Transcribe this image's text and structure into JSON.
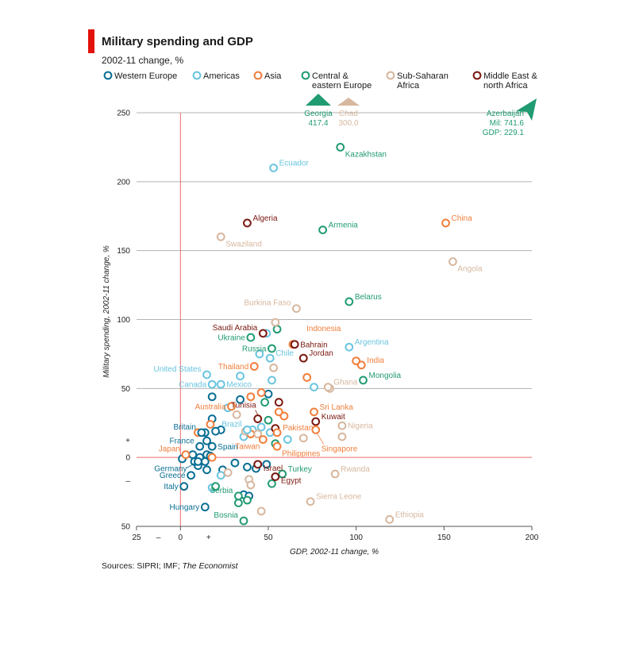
{
  "header": {
    "title": "Military spending and GDP",
    "subtitle": "2002-11 change, %"
  },
  "source": {
    "prefix": "Sources: SIPRI; IMF; ",
    "italic": "The Economist"
  },
  "colors": {
    "western_europe": "#0a6f93",
    "americas": "#6ac5e0",
    "asia": "#f07e3b",
    "central_eastern_europe": "#219b72",
    "sub_saharan_africa": "#d7b79e",
    "middle_east_north_africa": "#7b1810",
    "zero_line": "#ef6b6b",
    "grid": "#b3b3b3"
  },
  "chart_data": {
    "type": "scatter",
    "title": "Military spending and GDP",
    "subtitle": "2002-11 change, %",
    "xlabel": "GDP, 2002-11 change, %",
    "ylabel": "Military spending, 2002-11 change, %",
    "xlim": [
      -25,
      200
    ],
    "ylim": [
      -50,
      250
    ],
    "x_ticks": [
      {
        "value": -25,
        "label": "25"
      },
      {
        "value": 0,
        "label": "0"
      },
      {
        "value": 50,
        "label": "50"
      },
      {
        "value": 100,
        "label": "100"
      },
      {
        "value": 150,
        "label": "150"
      },
      {
        "value": 200,
        "label": "200"
      }
    ],
    "y_ticks": [
      {
        "value": 250,
        "label": "250"
      },
      {
        "value": 200,
        "label": "200"
      },
      {
        "value": 150,
        "label": "150"
      },
      {
        "value": 100,
        "label": "100"
      },
      {
        "value": 50,
        "label": "50"
      },
      {
        "value": 0,
        "label": "0"
      },
      {
        "value": -50,
        "label": "50"
      }
    ],
    "x_signs": [
      {
        "value": -12.5,
        "label": "–"
      },
      {
        "value": 16,
        "label": "+"
      }
    ],
    "y_signs": [
      {
        "value": 12.5,
        "label": "+"
      },
      {
        "value": -17,
        "label": "–"
      }
    ],
    "grid": "horizontal",
    "legend_position": "top",
    "legend": [
      {
        "key": "western_europe",
        "label": "Western Europe"
      },
      {
        "key": "americas",
        "label": "Americas"
      },
      {
        "key": "asia",
        "label": "Asia"
      },
      {
        "key": "central_eastern_europe",
        "label": "Central &\neastern Europe"
      },
      {
        "key": "sub_saharan_africa",
        "label": "Sub-Saharan\nAfrica"
      },
      {
        "key": "middle_east_north_africa",
        "label": "Middle East &\nnorth Africa"
      }
    ],
    "off_chart": [
      {
        "name": "Georgia",
        "region": "central_eastern_europe",
        "value": "417.4",
        "direction": "up"
      },
      {
        "name": "Chad",
        "region": "sub_saharan_africa",
        "value": "300.0",
        "direction": "up"
      },
      {
        "name": "Azerbaijan",
        "region": "central_eastern_europe",
        "lines": [
          "Azerbaijan",
          "Mil: 741.6",
          "GDP: 229.1"
        ],
        "direction": "up-right"
      }
    ],
    "labelled_points": [
      {
        "name": "Kazakhstan",
        "region": "central_eastern_europe",
        "x": 91,
        "y": 225,
        "pos": "below-right"
      },
      {
        "name": "Ecuador",
        "region": "americas",
        "x": 53,
        "y": 210,
        "pos": "right-up"
      },
      {
        "name": "Algeria",
        "region": "middle_east_north_africa",
        "x": 38,
        "y": 170,
        "pos": "right-up"
      },
      {
        "name": "Armenia",
        "region": "central_eastern_europe",
        "x": 81,
        "y": 165,
        "pos": "right-up"
      },
      {
        "name": "China",
        "region": "asia",
        "x": 151,
        "y": 170,
        "pos": "right-up"
      },
      {
        "name": "Swaziland",
        "region": "sub_saharan_africa",
        "x": 23,
        "y": 160,
        "pos": "below-right"
      },
      {
        "name": "Angola",
        "region": "sub_saharan_africa",
        "x": 155,
        "y": 142,
        "pos": "below-right"
      },
      {
        "name": "Belarus",
        "region": "central_eastern_europe",
        "x": 96,
        "y": 113,
        "pos": "right-up"
      },
      {
        "name": "Burkina Faso",
        "region": "sub_saharan_africa",
        "x": 66,
        "y": 108,
        "pos": "left-up"
      },
      {
        "name": "Saudi Arabia",
        "region": "middle_east_north_africa",
        "x": 47,
        "y": 90,
        "pos": "left-up"
      },
      {
        "name": "Indonesia",
        "region": "asia",
        "x": 64,
        "y": 82,
        "pos": "right-up-far"
      },
      {
        "name": "Ukraine",
        "region": "central_eastern_europe",
        "x": 40,
        "y": 87,
        "pos": "left"
      },
      {
        "name": "Bahrain",
        "region": "middle_east_north_africa",
        "x": 65,
        "y": 82,
        "pos": "right"
      },
      {
        "name": "Argentina",
        "region": "americas",
        "x": 96,
        "y": 80,
        "pos": "right-up"
      },
      {
        "name": "Russia",
        "region": "central_eastern_europe",
        "x": 52,
        "y": 79,
        "pos": "left"
      },
      {
        "name": "Jordan",
        "region": "middle_east_north_africa",
        "x": 70,
        "y": 72,
        "pos": "right-up"
      },
      {
        "name": "Chile",
        "region": "americas",
        "x": 51,
        "y": 72,
        "pos": "right-up"
      },
      {
        "name": "India",
        "region": "asia",
        "x": 103,
        "y": 67,
        "pos": "right-up"
      },
      {
        "name": "Thailand",
        "region": "asia",
        "x": 42,
        "y": 66,
        "pos": "left"
      },
      {
        "name": "United States",
        "region": "americas",
        "x": 15,
        "y": 60,
        "pos": "left-up"
      },
      {
        "name": "Mongolia",
        "region": "central_eastern_europe",
        "x": 104,
        "y": 56,
        "pos": "right-up"
      },
      {
        "name": "Ghana",
        "region": "sub_saharan_africa",
        "x": 84,
        "y": 51,
        "pos": "right-up"
      },
      {
        "name": "Canada",
        "region": "americas",
        "x": 18,
        "y": 53,
        "pos": "left"
      },
      {
        "name": "Mexico",
        "region": "americas",
        "x": 23,
        "y": 53,
        "pos": "right"
      },
      {
        "name": "Australia",
        "region": "asia",
        "x": 29,
        "y": 37,
        "pos": "left"
      },
      {
        "name": "Sri Lanka",
        "region": "asia",
        "x": 76,
        "y": 33,
        "pos": "right-up"
      },
      {
        "name": "Tunisia",
        "region": "middle_east_north_africa",
        "x": 44,
        "y": 28,
        "pos": "leader-up"
      },
      {
        "name": "Kuwait",
        "region": "middle_east_north_africa",
        "x": 77,
        "y": 26,
        "pos": "right-up"
      },
      {
        "name": "Nigeria",
        "region": "sub_saharan_africa",
        "x": 92,
        "y": 23,
        "pos": "right"
      },
      {
        "name": "Britain",
        "region": "western_europe",
        "x": 12,
        "y": 18,
        "pos": "left-up"
      },
      {
        "name": "Brazil",
        "region": "americas",
        "x": 38,
        "y": 20,
        "pos": "left-up"
      },
      {
        "name": "Pakistan",
        "region": "asia",
        "x": 55,
        "y": 18,
        "pos": "right-up"
      },
      {
        "name": "France",
        "region": "western_europe",
        "x": 11,
        "y": 8,
        "pos": "left-up"
      },
      {
        "name": "Spain",
        "region": "western_europe",
        "x": 18,
        "y": 8,
        "pos": "right"
      },
      {
        "name": "Taiwan",
        "region": "asia",
        "x": 47,
        "y": 13,
        "pos": "left-down"
      },
      {
        "name": "Singapore",
        "region": "asia",
        "x": 77,
        "y": 20,
        "pos": "leader-down"
      },
      {
        "name": "Philippines",
        "region": "asia",
        "x": 55,
        "y": 8,
        "pos": "below-right"
      },
      {
        "name": "Japan",
        "region": "asia",
        "x": 3,
        "y": 2,
        "pos": "left-up"
      },
      {
        "name": "Germany",
        "region": "western_europe",
        "x": 10,
        "y": -3,
        "pos": "leader-left"
      },
      {
        "name": "Israel",
        "region": "middle_east_north_africa",
        "x": 44,
        "y": -5,
        "pos": "right-down"
      },
      {
        "name": "Turkey",
        "region": "central_eastern_europe",
        "x": 58,
        "y": -12,
        "pos": "right-up"
      },
      {
        "name": "Rwanda",
        "region": "sub_saharan_africa",
        "x": 88,
        "y": -12,
        "pos": "right-up"
      },
      {
        "name": "Greece",
        "region": "western_europe",
        "x": 6,
        "y": -13,
        "pos": "left"
      },
      {
        "name": "Egypt",
        "region": "middle_east_north_africa",
        "x": 54,
        "y": -14,
        "pos": "right-down"
      },
      {
        "name": "Italy",
        "region": "western_europe",
        "x": 2,
        "y": -21,
        "pos": "left"
      },
      {
        "name": "Sierra Leone",
        "region": "sub_saharan_africa",
        "x": 74,
        "y": -32,
        "pos": "right-up"
      },
      {
        "name": "Serbia",
        "region": "central_eastern_europe",
        "x": 33,
        "y": -28,
        "pos": "left-up"
      },
      {
        "name": "Hungary",
        "region": "western_europe",
        "x": 14,
        "y": -36,
        "pos": "left"
      },
      {
        "name": "Bosnia",
        "region": "central_eastern_europe",
        "x": 36,
        "y": -46,
        "pos": "left-up"
      },
      {
        "name": "Ethiopia",
        "region": "sub_saharan_africa",
        "x": 119,
        "y": -45,
        "pos": "right-up"
      }
    ],
    "unlabelled_points": [
      {
        "region": "western_europe",
        "x": 18,
        "y": 44
      },
      {
        "region": "western_europe",
        "x": 18,
        "y": 28
      },
      {
        "region": "western_europe",
        "x": 14,
        "y": 18
      },
      {
        "region": "western_europe",
        "x": 23,
        "y": 20
      },
      {
        "region": "western_europe",
        "x": 20,
        "y": 19
      },
      {
        "region": "western_europe",
        "x": 15,
        "y": 12
      },
      {
        "region": "western_europe",
        "x": 7,
        "y": 2
      },
      {
        "region": "western_europe",
        "x": 11,
        "y": 0
      },
      {
        "region": "western_europe",
        "x": 15,
        "y": 2
      },
      {
        "region": "western_europe",
        "x": 17,
        "y": 1
      },
      {
        "region": "western_europe",
        "x": 14,
        "y": -3
      },
      {
        "region": "western_europe",
        "x": 15,
        "y": -9
      },
      {
        "region": "western_europe",
        "x": 10,
        "y": -6
      },
      {
        "region": "western_europe",
        "x": 8,
        "y": -3
      },
      {
        "region": "western_europe",
        "x": 24,
        "y": -9
      },
      {
        "region": "western_europe",
        "x": 31,
        "y": -4
      },
      {
        "region": "western_europe",
        "x": 36,
        "y": -27
      },
      {
        "region": "western_europe",
        "x": 39,
        "y": -28
      },
      {
        "region": "western_europe",
        "x": 38,
        "y": -7
      },
      {
        "region": "western_europe",
        "x": 43,
        "y": -8
      },
      {
        "region": "western_europe",
        "x": 49,
        "y": -5
      },
      {
        "region": "western_europe",
        "x": 34,
        "y": 42
      },
      {
        "region": "western_europe",
        "x": 50,
        "y": 46
      },
      {
        "region": "western_europe",
        "x": 1,
        "y": -1
      },
      {
        "region": "americas",
        "x": 49,
        "y": 90
      },
      {
        "region": "americas",
        "x": 34,
        "y": 59
      },
      {
        "region": "americas",
        "x": 45,
        "y": 75
      },
      {
        "region": "americas",
        "x": 52,
        "y": 56
      },
      {
        "region": "americas",
        "x": 76,
        "y": 51
      },
      {
        "region": "americas",
        "x": 27,
        "y": 36
      },
      {
        "region": "americas",
        "x": 36,
        "y": 15
      },
      {
        "region": "americas",
        "x": 41,
        "y": 20
      },
      {
        "region": "americas",
        "x": 46,
        "y": 22
      },
      {
        "region": "americas",
        "x": 51,
        "y": 18
      },
      {
        "region": "americas",
        "x": 61,
        "y": 13
      },
      {
        "region": "americas",
        "x": 23,
        "y": -13
      },
      {
        "region": "americas",
        "x": 18,
        "y": -22
      },
      {
        "region": "asia",
        "x": 40,
        "y": 44
      },
      {
        "region": "asia",
        "x": 46,
        "y": 47
      },
      {
        "region": "asia",
        "x": 56,
        "y": 33
      },
      {
        "region": "asia",
        "x": 59,
        "y": 30
      },
      {
        "region": "asia",
        "x": 72,
        "y": 58
      },
      {
        "region": "asia",
        "x": 100,
        "y": 70
      },
      {
        "region": "asia",
        "x": 17,
        "y": 24
      },
      {
        "region": "asia",
        "x": 10,
        "y": 18
      },
      {
        "region": "asia",
        "x": 18,
        "y": 0
      },
      {
        "region": "asia",
        "x": 40,
        "y": 17
      },
      {
        "region": "central_eastern_europe",
        "x": 55,
        "y": 93
      },
      {
        "region": "central_eastern_europe",
        "x": 48,
        "y": 40
      },
      {
        "region": "central_eastern_europe",
        "x": 50,
        "y": 27
      },
      {
        "region": "central_eastern_europe",
        "x": 54,
        "y": 10
      },
      {
        "region": "central_eastern_europe",
        "x": 20,
        "y": -21
      },
      {
        "region": "central_eastern_europe",
        "x": 38,
        "y": -31
      },
      {
        "region": "central_eastern_europe",
        "x": 33,
        "y": -33
      },
      {
        "region": "central_eastern_europe",
        "x": 52,
        "y": -19
      },
      {
        "region": "sub_saharan_africa",
        "x": 54,
        "y": 98
      },
      {
        "region": "sub_saharan_africa",
        "x": 53,
        "y": 65
      },
      {
        "region": "sub_saharan_africa",
        "x": 85,
        "y": 50
      },
      {
        "region": "sub_saharan_africa",
        "x": 32,
        "y": 31
      },
      {
        "region": "sub_saharan_africa",
        "x": 37,
        "y": 19
      },
      {
        "region": "sub_saharan_africa",
        "x": 44,
        "y": 17
      },
      {
        "region": "sub_saharan_africa",
        "x": 92,
        "y": 15
      },
      {
        "region": "sub_saharan_africa",
        "x": 70,
        "y": 14
      },
      {
        "region": "sub_saharan_africa",
        "x": 27,
        "y": -11
      },
      {
        "region": "sub_saharan_africa",
        "x": 39,
        "y": -16
      },
      {
        "region": "sub_saharan_africa",
        "x": 40,
        "y": -20
      },
      {
        "region": "sub_saharan_africa",
        "x": 46,
        "y": -39
      },
      {
        "region": "middle_east_north_africa",
        "x": 56,
        "y": 40
      },
      {
        "region": "middle_east_north_africa",
        "x": 54,
        "y": 21
      }
    ]
  }
}
